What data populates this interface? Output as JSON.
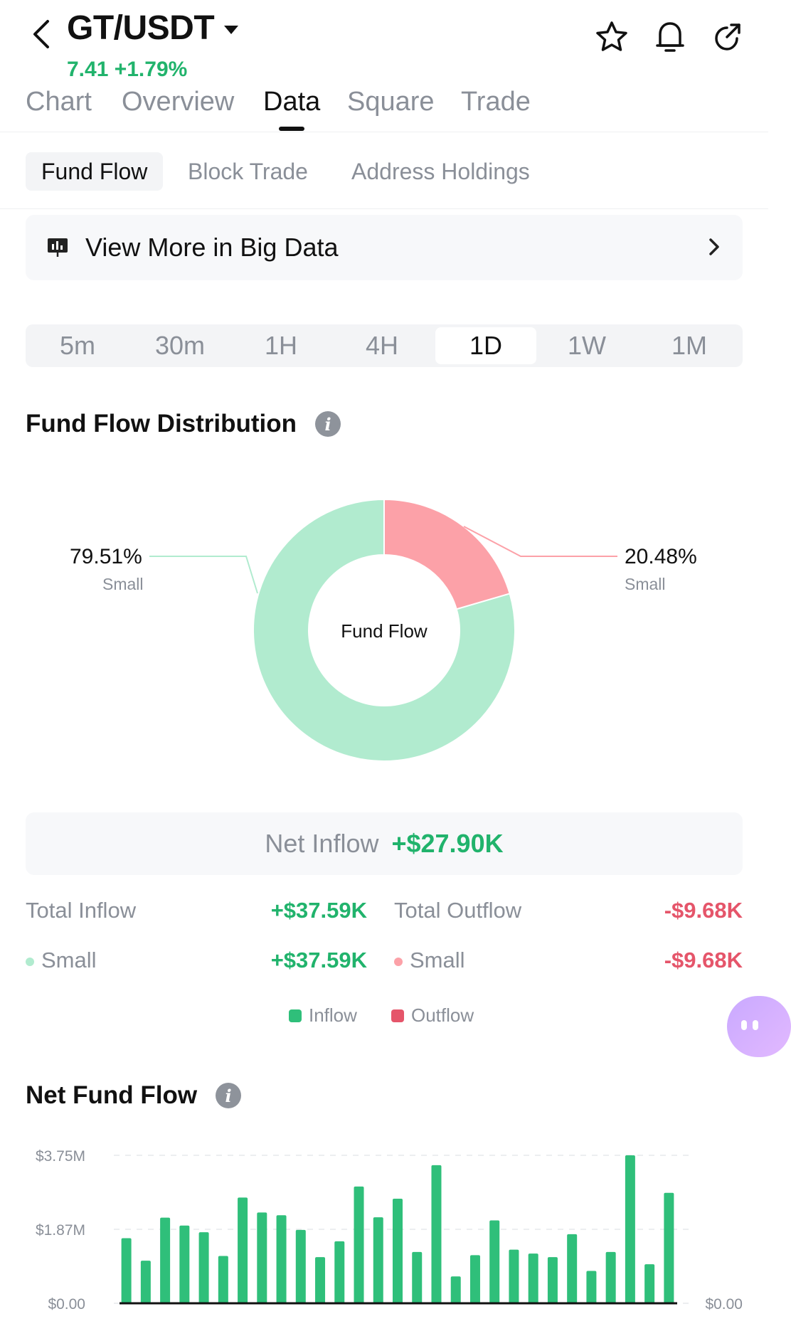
{
  "header": {
    "pair": "GT/USDT",
    "price_line": "7.41  +1.79%"
  },
  "main_tabs": [
    "Chart",
    "Overview",
    "Data",
    "Square",
    "Trade"
  ],
  "sub_tabs": [
    "Fund Flow",
    "Block Trade",
    "Address Holdings"
  ],
  "big_data": {
    "label": "View More in Big Data"
  },
  "periods": [
    "5m",
    "30m",
    "1H",
    "4H",
    "1D",
    "1W",
    "1M"
  ],
  "active_period": "1D",
  "distribution": {
    "title": "Fund Flow Distribution",
    "center_label": "Fund Flow",
    "left_pct": "79.51%",
    "left_sub": "Small",
    "right_pct": "20.48%",
    "right_sub": "Small",
    "colors": {
      "inflow": "#b1ebcf",
      "outflow": "#fca1a8"
    }
  },
  "net": {
    "label": "Net Inflow",
    "value": "+$27.90K"
  },
  "totals": {
    "inflow_label": "Total Inflow",
    "inflow_value": "+$37.59K",
    "outflow_label": "Total Outflow",
    "outflow_value": "-$9.68K",
    "small_in_label": "Small",
    "small_in_value": "+$37.59K",
    "small_out_label": "Small",
    "small_out_value": "-$9.68K"
  },
  "legend": {
    "inflow": "Inflow",
    "outflow": "Outflow"
  },
  "net_flow": {
    "title": "Net Fund Flow"
  },
  "chart_data": [
    {
      "type": "pie",
      "labels": [
        "Small",
        "Small"
      ],
      "values": [
        79.51,
        20.48
      ],
      "legend": [
        "Inflow",
        "Outflow"
      ],
      "colors": [
        "#b1ebcf",
        "#fca1a8"
      ]
    },
    {
      "type": "bar",
      "title": "Net Fund Flow",
      "y_ticks": [
        "$3.75M",
        "$1.87M",
        "$0.00"
      ],
      "right_tick": "$0.00",
      "ylim": [
        0,
        3.75
      ],
      "values": [
        1.65,
        1.08,
        2.17,
        1.97,
        1.8,
        1.2,
        2.68,
        2.3,
        2.23,
        1.86,
        1.17,
        1.57,
        2.96,
        2.18,
        2.65,
        1.3,
        3.5,
        0.68,
        1.22,
        2.1,
        1.36,
        1.26,
        1.17,
        1.75,
        0.82,
        1.3,
        3.75,
        0.99,
        2.8
      ],
      "color": "#2fbf7a"
    }
  ]
}
